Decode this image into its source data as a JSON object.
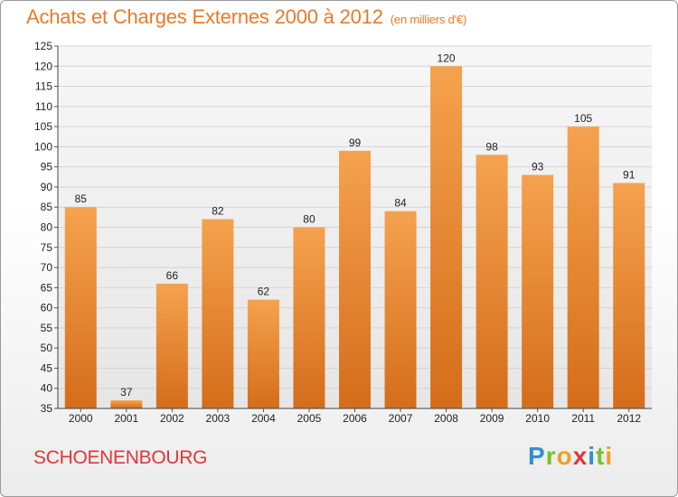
{
  "page": {
    "title": "Achats et Charges Externes 2000 à 2012",
    "unit": "(en milliers d'€)",
    "city": "SCHOENENBOURG",
    "logo_letters": [
      {
        "char": "P",
        "color": "#2f8fd6"
      },
      {
        "char": "r",
        "color": "#7abf2a"
      },
      {
        "char": "o",
        "color": "#f0a020"
      },
      {
        "char": "x",
        "color": "#e0363a"
      },
      {
        "char": "i",
        "color": "#2f8fd6"
      },
      {
        "char": "t",
        "color": "#7abf2a"
      },
      {
        "char": "i",
        "color": "#f0a020"
      }
    ]
  },
  "chart_data": {
    "type": "bar",
    "title": "Achats et Charges Externes 2000 à 2012",
    "categories": [
      "2000",
      "2001",
      "2002",
      "2003",
      "2004",
      "2005",
      "2006",
      "2007",
      "2008",
      "2009",
      "2010",
      "2011",
      "2012"
    ],
    "values": [
      85,
      37,
      66,
      82,
      62,
      80,
      99,
      84,
      120,
      98,
      93,
      105,
      91
    ],
    "ylim": [
      35,
      125
    ],
    "yticks": [
      35,
      40,
      45,
      50,
      55,
      60,
      65,
      70,
      75,
      80,
      85,
      90,
      95,
      100,
      105,
      110,
      115,
      120,
      125
    ],
    "grid": true,
    "bar_color_top": "#f5a24f",
    "bar_color_bottom": "#d46d1a"
  }
}
